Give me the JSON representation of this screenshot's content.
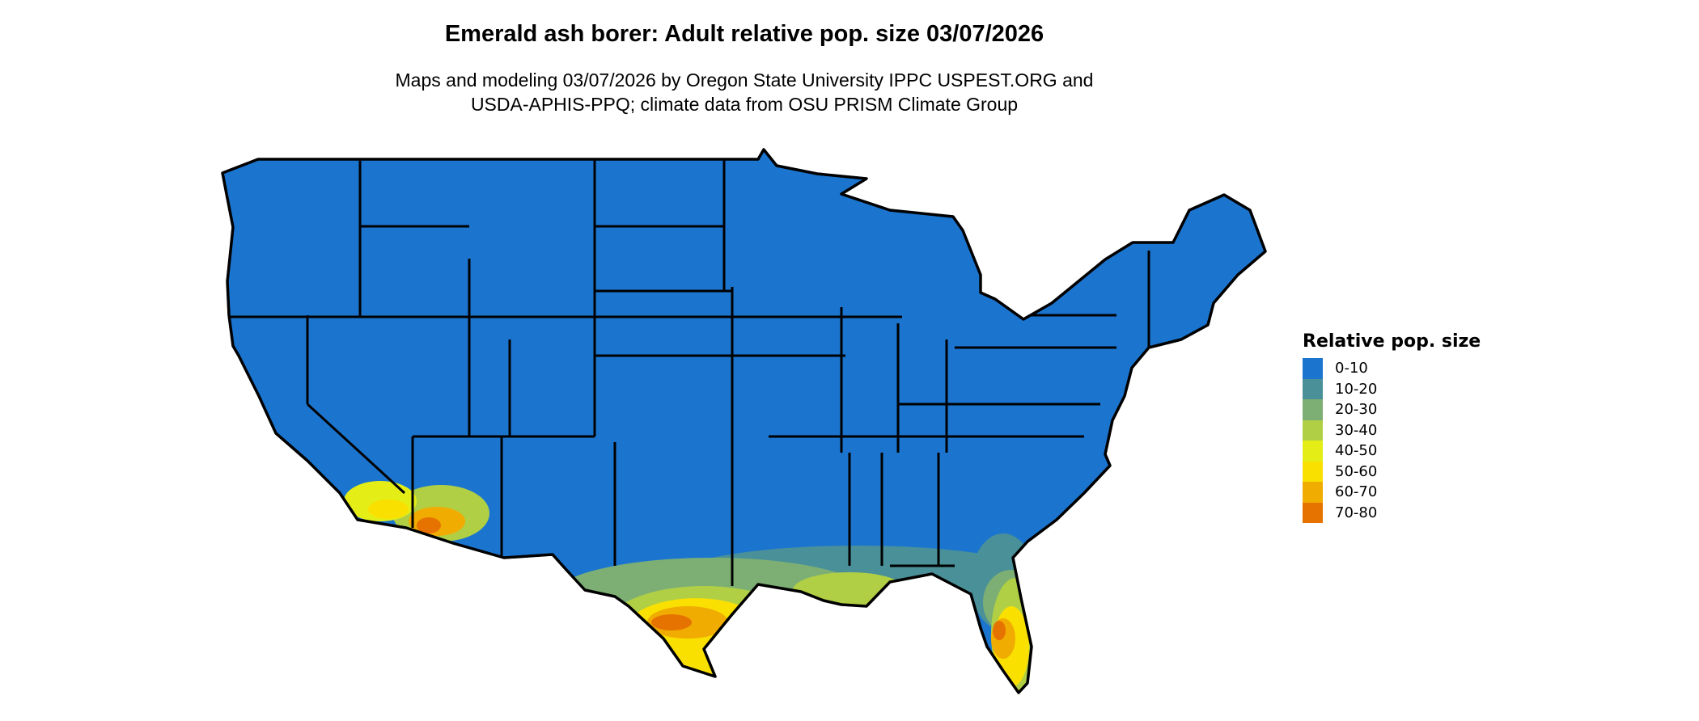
{
  "title": "Emerald ash borer: Adult relative pop. size 03/07/2026",
  "subtitle_line1": "Maps and modeling 03/07/2026 by Oregon State University IPPC USPEST.ORG and",
  "subtitle_line2": "USDA-APHIS-PPQ; climate data from OSU PRISM Climate Group",
  "legend": {
    "title": "Relative pop. size",
    "items": [
      {
        "label": "0-10",
        "color": "#1B75CF"
      },
      {
        "label": "10-20",
        "color": "#4A9098"
      },
      {
        "label": "20-30",
        "color": "#7DAF74"
      },
      {
        "label": "30-40",
        "color": "#B1CF45"
      },
      {
        "label": "40-50",
        "color": "#E4EE16"
      },
      {
        "label": "50-60",
        "color": "#F9E000"
      },
      {
        "label": "60-70",
        "color": "#F0AC00"
      },
      {
        "label": "70-80",
        "color": "#E67300"
      }
    ]
  },
  "map": {
    "region": "contiguous United States",
    "base_class": "0-10",
    "hotspots": [
      "south Texas",
      "Gulf coast",
      "peninsular Florida",
      "southern Arizona",
      "southern California"
    ]
  }
}
